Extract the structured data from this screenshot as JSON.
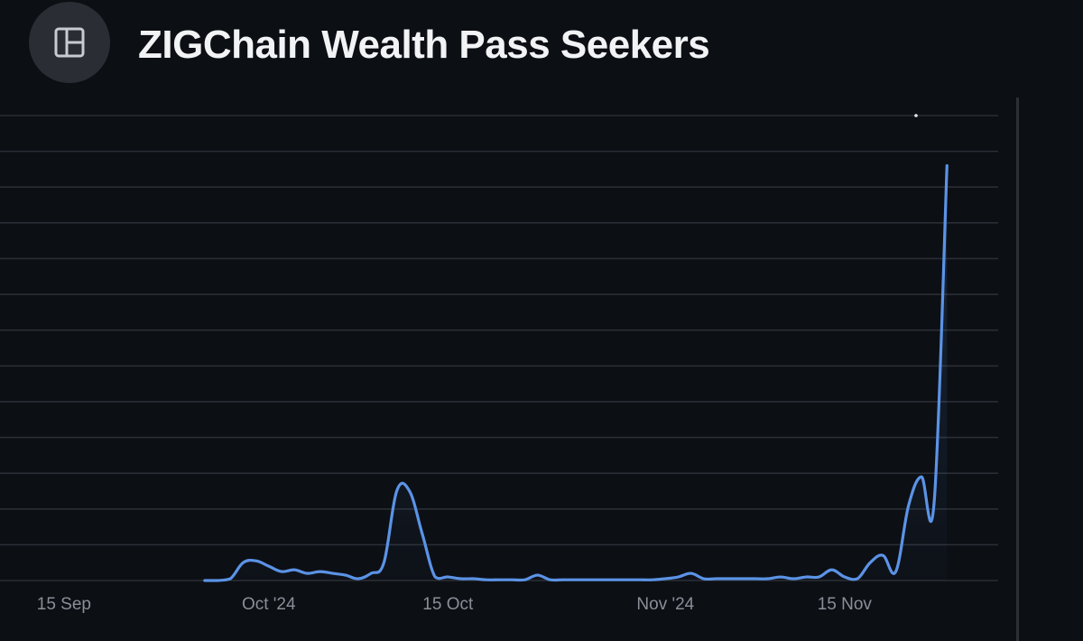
{
  "header": {
    "title": "ZIGChain Wealth Pass Seekers",
    "icon": "layout-panel-icon"
  },
  "colors": {
    "background": "#0c0f14",
    "grid": "#2a2e35",
    "line": "#5b93e6",
    "tick_text": "#8a8f98",
    "title": "#f2f3f5"
  },
  "chart_data": {
    "type": "line",
    "title": "ZIGChain Wealth Pass Seekers",
    "xlabel": "",
    "ylabel": "",
    "x_tick_labels": [
      "15 Sep",
      "Oct '24",
      "15 Oct",
      "Nov '24",
      "15 Nov"
    ],
    "x_tick_dates": [
      "2024-09-15",
      "2024-10-01",
      "2024-10-15",
      "2024-11-01",
      "2024-11-15"
    ],
    "xlim": [
      "2024-09-10",
      "2024-11-27"
    ],
    "y_tick_labels": [],
    "ylim": [
      0,
      13
    ],
    "grid": true,
    "legend": "none",
    "series": [
      {
        "points": [
          [
            "2024-09-26",
            0.0
          ],
          [
            "2024-09-27",
            0.0
          ],
          [
            "2024-09-28",
            0.05
          ],
          [
            "2024-09-29",
            0.5
          ],
          [
            "2024-09-30",
            0.55
          ],
          [
            "2024-10-01",
            0.4
          ],
          [
            "2024-10-02",
            0.25
          ],
          [
            "2024-10-03",
            0.3
          ],
          [
            "2024-10-04",
            0.2
          ],
          [
            "2024-10-05",
            0.25
          ],
          [
            "2024-10-06",
            0.2
          ],
          [
            "2024-10-07",
            0.15
          ],
          [
            "2024-10-08",
            0.05
          ],
          [
            "2024-10-09",
            0.2
          ],
          [
            "2024-10-10",
            0.5
          ],
          [
            "2024-10-11",
            2.5
          ],
          [
            "2024-10-12",
            2.5
          ],
          [
            "2024-10-13",
            1.3
          ],
          [
            "2024-10-14",
            0.1
          ],
          [
            "2024-10-15",
            0.1
          ],
          [
            "2024-10-16",
            0.05
          ],
          [
            "2024-10-17",
            0.05
          ],
          [
            "2024-10-18",
            0.02
          ],
          [
            "2024-10-19",
            0.02
          ],
          [
            "2024-10-20",
            0.02
          ],
          [
            "2024-10-21",
            0.02
          ],
          [
            "2024-10-22",
            0.15
          ],
          [
            "2024-10-23",
            0.02
          ],
          [
            "2024-10-24",
            0.02
          ],
          [
            "2024-10-25",
            0.02
          ],
          [
            "2024-10-26",
            0.02
          ],
          [
            "2024-10-27",
            0.02
          ],
          [
            "2024-10-28",
            0.02
          ],
          [
            "2024-10-29",
            0.02
          ],
          [
            "2024-10-30",
            0.02
          ],
          [
            "2024-10-31",
            0.02
          ],
          [
            "2024-11-01",
            0.05
          ],
          [
            "2024-11-02",
            0.1
          ],
          [
            "2024-11-03",
            0.2
          ],
          [
            "2024-11-04",
            0.05
          ],
          [
            "2024-11-05",
            0.05
          ],
          [
            "2024-11-06",
            0.05
          ],
          [
            "2024-11-07",
            0.05
          ],
          [
            "2024-11-08",
            0.05
          ],
          [
            "2024-11-09",
            0.05
          ],
          [
            "2024-11-10",
            0.1
          ],
          [
            "2024-11-11",
            0.05
          ],
          [
            "2024-11-12",
            0.1
          ],
          [
            "2024-11-13",
            0.1
          ],
          [
            "2024-11-14",
            0.3
          ],
          [
            "2024-11-15",
            0.1
          ],
          [
            "2024-11-16",
            0.05
          ],
          [
            "2024-11-17",
            0.5
          ],
          [
            "2024-11-18",
            0.7
          ],
          [
            "2024-11-19",
            0.25
          ],
          [
            "2024-11-20",
            2.1
          ],
          [
            "2024-11-21",
            2.9
          ],
          [
            "2024-11-22",
            2.2
          ],
          [
            "2024-11-23",
            11.6
          ]
        ]
      }
    ]
  }
}
